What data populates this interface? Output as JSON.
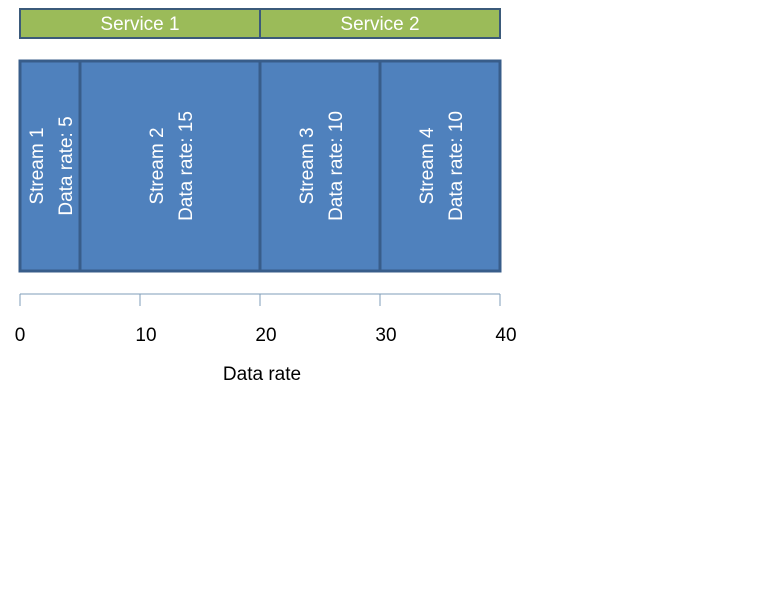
{
  "colors": {
    "service_fill": "#9bbb59",
    "service_border": "#3b5a7a",
    "stream_fill": "#4f81bd",
    "stream_border": "#385d8a",
    "axis": "#7f9db9"
  },
  "services": [
    {
      "name": "Service 1",
      "start": 0,
      "end": 20
    },
    {
      "name": "Service 2",
      "start": 20,
      "end": 40
    }
  ],
  "streams": [
    {
      "name": "Stream 1",
      "rate_label": "Data rate: 5",
      "rate": 5
    },
    {
      "name": "Stream 2",
      "rate_label": "Data rate: 15",
      "rate": 15
    },
    {
      "name": "Stream 3",
      "rate_label": "Data rate: 10",
      "rate": 10
    },
    {
      "name": "Stream 4",
      "rate_label": "Data rate: 10",
      "rate": 10
    }
  ],
  "axis": {
    "title": "Data rate",
    "range": [
      0,
      40
    ],
    "major_ticks": [
      0,
      10,
      20,
      30,
      40
    ],
    "tick_labels": [
      "0",
      "10",
      "20",
      "30",
      "40"
    ]
  }
}
